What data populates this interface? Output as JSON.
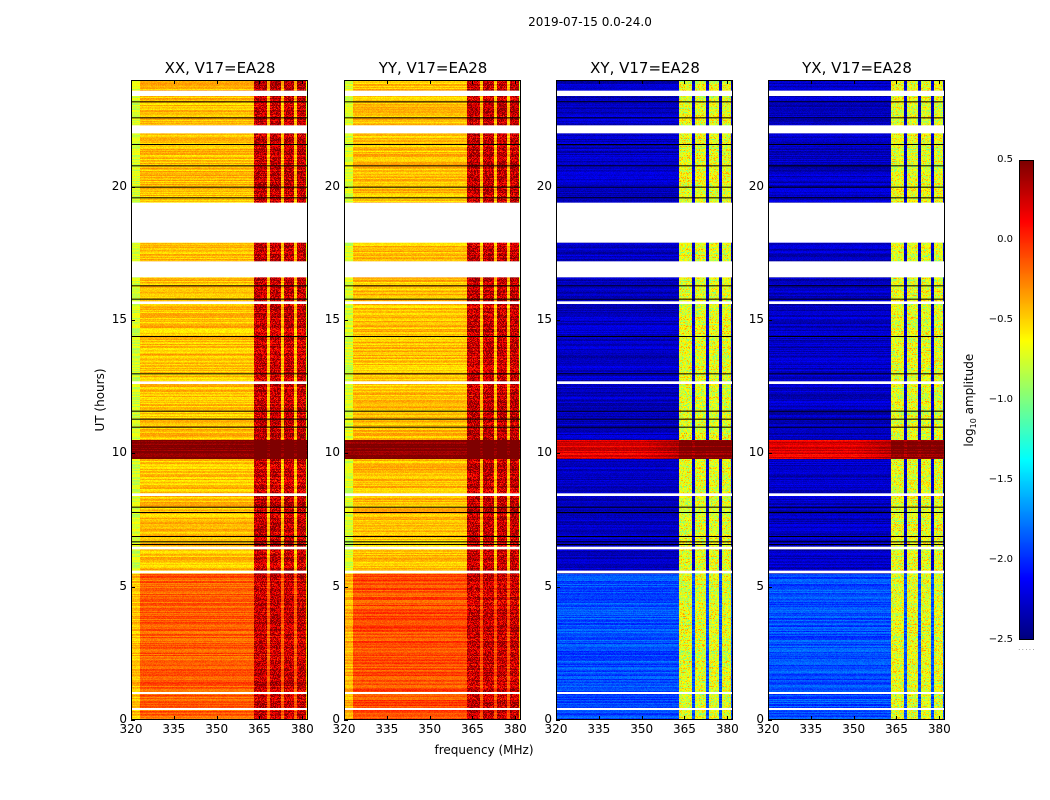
{
  "chart_data": {
    "type": "heatmap",
    "suptitle": "2019-07-15 0.0-24.0",
    "xlabel": "frequency (MHz)",
    "ylabel": "UT (hours)",
    "xlim": [
      320,
      382
    ],
    "ylim": [
      0,
      24
    ],
    "xticks": [
      320,
      335,
      350,
      365,
      380
    ],
    "yticks": [
      0,
      5,
      10,
      15,
      20
    ],
    "colorbar": {
      "label_prefix": "log",
      "label_sub": "10",
      "label_suffix": " amplitude",
      "min": -2.5,
      "max": 0.5,
      "ticks": [
        "0.5",
        "0.0",
        "−0.5",
        "−1.0",
        "−1.5",
        "−2.0",
        "−2.5"
      ],
      "colormap": "jet"
    },
    "panels": [
      {
        "title": "XX, V17=EA28",
        "base_level": -0.45,
        "lowband_level": -0.15,
        "rfi_level": 0.2,
        "flare_level": 0.5
      },
      {
        "title": "YY, V17=EA28",
        "base_level": -0.45,
        "lowband_level": -0.1,
        "rfi_level": 0.2,
        "flare_level": 0.5
      },
      {
        "title": "XY, V17=EA28",
        "base_level": -2.3,
        "lowband_level": -1.9,
        "rfi_level": -0.8,
        "flare_level": 0.2
      },
      {
        "title": "YX, V17=EA28",
        "base_level": -2.3,
        "lowband_level": -1.9,
        "rfi_level": -0.8,
        "flare_level": 0.2
      }
    ],
    "rfi_bands_mhz": [
      [
        363,
        367.5
      ],
      [
        368.5,
        372.5
      ],
      [
        373.5,
        377
      ],
      [
        378,
        381
      ]
    ],
    "flare_hours": [
      9.8,
      10.5
    ],
    "lowband_hours": [
      0,
      5.5
    ],
    "gap_hours": [
      [
        17.9,
        19.4
      ],
      [
        16.6,
        17.2
      ],
      [
        22.0,
        22.3
      ],
      [
        23.4,
        23.6
      ],
      [
        12.6,
        12.7
      ],
      [
        8.4,
        8.5
      ],
      [
        6.4,
        6.5
      ],
      [
        5.5,
        5.6
      ],
      [
        15.6,
        15.7
      ],
      [
        0.4,
        0.45
      ],
      [
        1.0,
        1.05
      ]
    ],
    "flagged_line_hours": [
      23.2,
      22.6,
      21.6,
      20.8,
      20.0,
      19.6,
      16.3,
      15.8,
      14.4,
      13.0,
      11.6,
      11.3,
      11.0,
      8.0,
      7.8,
      6.9,
      6.7,
      6.6
    ]
  }
}
